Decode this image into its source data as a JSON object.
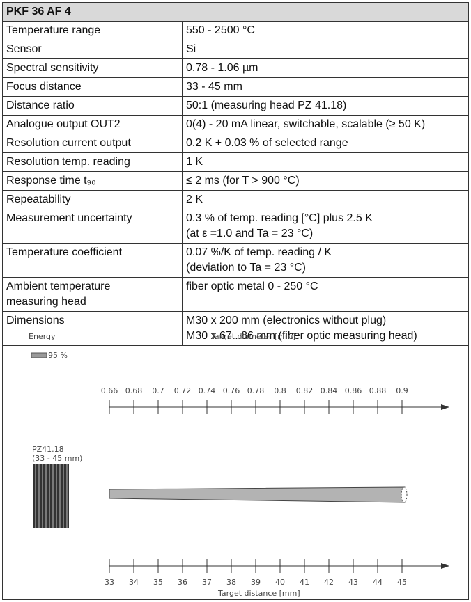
{
  "table": {
    "title": "PKF 36 AF 4",
    "rows": [
      [
        [
          "Temperature range"
        ],
        [
          "550 - 2500 °C"
        ]
      ],
      [
        [
          "Sensor"
        ],
        [
          "Si"
        ]
      ],
      [
        [
          "Spectral sensitivity"
        ],
        [
          "0.78 - 1.06 µm"
        ]
      ],
      [
        [
          "Focus distance"
        ],
        [
          "33 - 45 mm"
        ]
      ],
      [
        [
          "Distance ratio"
        ],
        [
          "50:1 (measuring head PZ 41.18)"
        ]
      ],
      [
        [
          "Analogue output OUT2"
        ],
        [
          "0(4) - 20 mA linear, switchable, scalable (≥ 50 K)"
        ]
      ],
      [
        [
          "Resolution current output"
        ],
        [
          "0.2 K + 0.03 % of selected range"
        ]
      ],
      [
        [
          "Resolution temp. reading"
        ],
        [
          "1 K"
        ]
      ],
      [
        [
          "Response time t₉₀"
        ],
        [
          "≤ 2 ms (for T > 900 °C)"
        ]
      ],
      [
        [
          "Repeatability"
        ],
        [
          "2 K"
        ]
      ],
      [
        [
          "Measurement uncertainty"
        ],
        [
          "0.3 % of temp. reading [°C] plus 2.5 K",
          "(at ε =1.0 and Ta = 23 °C)"
        ]
      ],
      [
        [
          "Temperature coefficient"
        ],
        [
          "0.07 %/K of temp. reading / K",
          "(deviation to Ta = 23 °C)"
        ]
      ],
      [
        [
          "Ambient temperature",
          "measuring head"
        ],
        [
          "fiber optic metal 0 - 250 °C"
        ]
      ],
      [
        [
          "Dimensions"
        ],
        [
          "M30 x 200 mm (electronics without plug)",
          "M30 x 67...86 mm (fiber optic measuring head)"
        ]
      ]
    ]
  },
  "diagram": {
    "energy_label": "Energy",
    "energy_value": "95 %",
    "diameter_label": "Target diameter [mm]",
    "diameter_ticks": [
      0.66,
      0.68,
      0.7,
      0.72,
      0.74,
      0.76,
      0.78,
      0.8,
      0.82,
      0.84,
      0.86,
      0.88,
      0.9
    ],
    "head_name": "PZ41.18",
    "head_range": "(33 - 45 mm)",
    "distance_label": "Target distance [mm]",
    "distance_ticks": [
      33,
      34,
      35,
      36,
      37,
      38,
      39,
      40,
      41,
      42,
      43,
      44,
      45
    ]
  }
}
